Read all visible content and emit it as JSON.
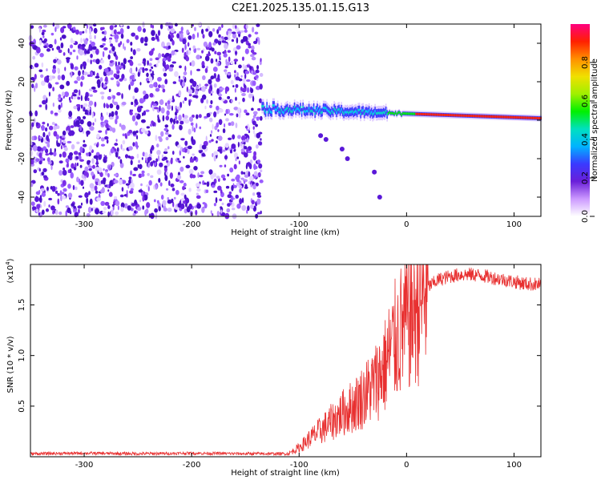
{
  "title": "C2E1.2025.135.01.15.G13",
  "chart_data": [
    {
      "type": "heatmap",
      "name": "spectrogram",
      "xlabel": "Height of straight line (km)",
      "ylabel": "Frequency (Hz)",
      "xlim": [
        -350,
        125
      ],
      "ylim": [
        -50,
        50
      ],
      "x_ticks": [
        -300,
        -200,
        -100,
        0,
        100
      ],
      "y_ticks": [
        -40,
        -20,
        0,
        20,
        40
      ],
      "colorbar": {
        "label": "Normalized spectral amplitude",
        "range": [
          0.0,
          1.0
        ],
        "ticks": [
          "0.0",
          "0.2",
          "0.4",
          "0.6",
          "0.8"
        ],
        "colors": [
          "#ffffff",
          "#cc99ff",
          "#6a1fd9",
          "#3a3aff",
          "#00b4ff",
          "#00e0c0",
          "#00f000",
          "#a0f000",
          "#f0e000",
          "#ff9000",
          "#ff2000",
          "#ff0080"
        ]
      },
      "regions": [
        {
          "description": "broadband noise",
          "x_from": -350,
          "x_to": -135,
          "freq_from": -50,
          "freq_to": 50
        },
        {
          "description": "carrier line",
          "x_from": -135,
          "x_to": 125,
          "freq_center_start": 6,
          "freq_center_end": 1
        }
      ],
      "grid": false
    },
    {
      "type": "line",
      "name": "snr",
      "xlabel": "Height of straight line (km)",
      "ylabel": "SNR (10 * v/v)",
      "y_multiplier": "(x10",
      "y_multiplier_exp": "4",
      "y_multiplier_close": ")",
      "xlim": [
        -350,
        125
      ],
      "ylim": [
        0,
        19000
      ],
      "x_ticks": [
        -300,
        -200,
        -100,
        0,
        100
      ],
      "y_ticks": [
        "0.5",
        "1.0",
        "1.5"
      ],
      "y_tick_values": [
        5000,
        10000,
        15000
      ],
      "color": "#e83030",
      "series": [
        {
          "x": [
            -350,
            -300,
            -250,
            -200,
            -150,
            -110,
            -100,
            -90,
            -80,
            -70,
            -60,
            -50,
            -40,
            -30,
            -20,
            -15,
            -10,
            -5,
            0,
            10,
            20,
            30,
            40,
            50,
            60,
            70,
            80,
            90,
            100,
            110,
            125
          ],
          "y": [
            300,
            350,
            300,
            350,
            300,
            300,
            900,
            1800,
            2600,
            3400,
            4300,
            5000,
            6000,
            7200,
            9000,
            10500,
            11500,
            12500,
            13500,
            15000,
            16800,
            17500,
            17800,
            18000,
            18000,
            17900,
            17700,
            17500,
            17300,
            17100,
            17000
          ]
        }
      ],
      "grid": false
    }
  ]
}
